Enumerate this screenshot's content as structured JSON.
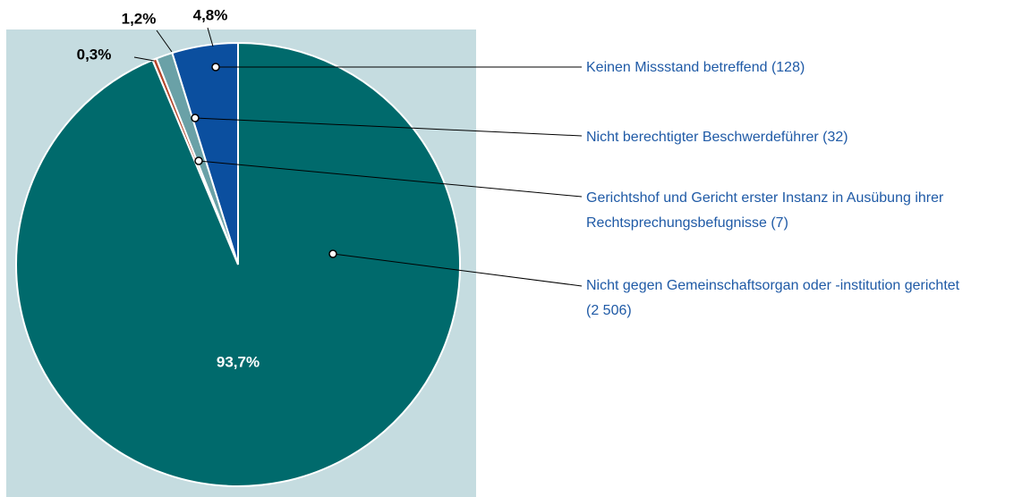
{
  "chart_data": {
    "type": "pie",
    "categories": [
      "Keinen Missstand betreffend (128)",
      "Nicht berechtigter Beschwerdeführer (32)",
      "Gerichtshof und Gericht erster Instanz in Ausübung ihrer Rechtsprechungsbefugnisse (7)",
      "Nicht gegen Gemeinschaftsorgan oder -institution gerichtet (2 506)"
    ],
    "values": [
      4.8,
      1.2,
      0.3,
      93.7
    ],
    "value_labels": [
      "4,8%",
      "1,2%",
      "0,3%",
      "93,7%"
    ],
    "colors": [
      "#0b4f9f",
      "#6aa1a7",
      "#b3452a",
      "#006a6c"
    ]
  }
}
